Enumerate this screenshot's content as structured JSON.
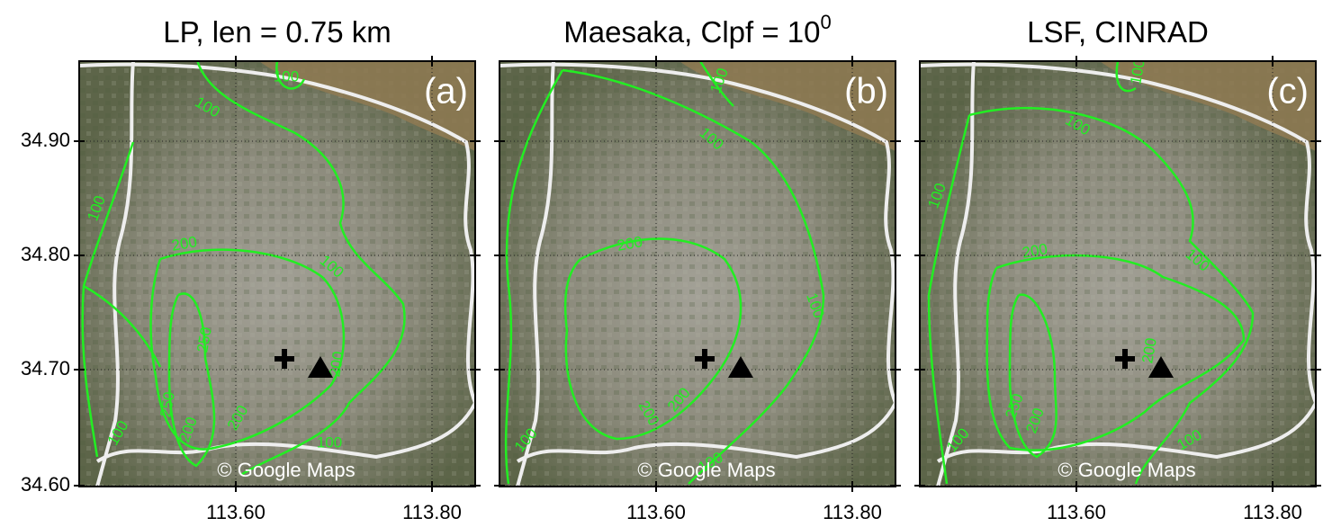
{
  "panels": [
    {
      "title": "LP, len = 0.75 km",
      "label": "(a)",
      "attribution": "© Google Maps",
      "contour_labels": [
        "100",
        "100",
        "100",
        "100",
        "200",
        "250",
        "250",
        "200",
        "200",
        "200",
        "100",
        "100"
      ]
    },
    {
      "title": "Maesaka, Clpf = 10",
      "title_superscript": "0",
      "label": "(b)",
      "attribution": "© Google Maps",
      "contour_labels": [
        "100",
        "100",
        "200",
        "100",
        "200",
        "200",
        "100",
        "100"
      ]
    },
    {
      "title": "LSF, CINRAD",
      "label": "(c)",
      "attribution": "© Google Maps",
      "contour_labels": [
        "100",
        "100",
        "100",
        "200",
        "100",
        "250",
        "200",
        "200",
        "100",
        "100"
      ]
    }
  ],
  "y_axis": {
    "tick_labels": [
      "34.90",
      "34.80",
      "34.70",
      "34.60"
    ]
  },
  "x_axis": {
    "tick_labels": [
      "113.60",
      "113.80"
    ]
  }
}
